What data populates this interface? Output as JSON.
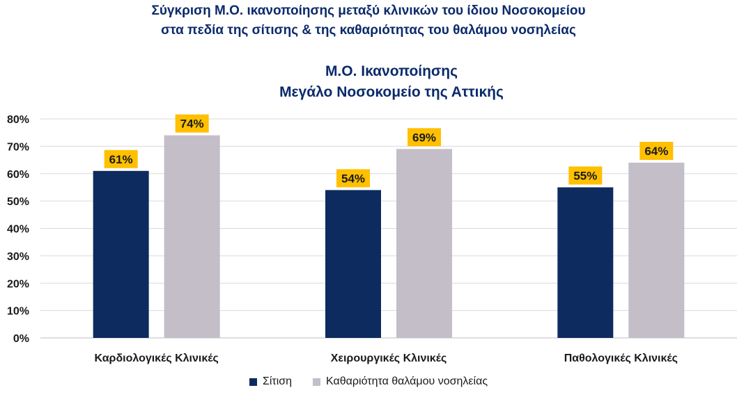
{
  "header": {
    "line1": "Σύγκριση Μ.Ο. ικανοποίησης μεταξύ κλινικών του ίδιου Νοσοκομείου",
    "line2": "στα πεδία της σίτισης & της καθαριότητας του θαλάμου νοσηλείας"
  },
  "chart_data": {
    "type": "bar",
    "title": "Μ.Ο. Ικανοποίησης",
    "subtitle": "Μεγάλο Νοσοκομείο της Αττικής",
    "categories": [
      "Καρδιολογικές Κλινικές",
      "Χειρουργικές Κλινικές",
      "Παθολογικές Κλινικές"
    ],
    "series": [
      {
        "name": "Σίτιση",
        "values": [
          61,
          54,
          55
        ],
        "color": "#0d2b5e"
      },
      {
        "name": "Καθαριότητα θαλάμου νοσηλείας",
        "values": [
          74,
          69,
          64
        ],
        "color": "#c4bec8"
      }
    ],
    "yticks": [
      "0%",
      "10%",
      "20%",
      "30%",
      "40%",
      "50%",
      "60%",
      "70%",
      "80%"
    ],
    "ylim": [
      0,
      80
    ],
    "data_labels": [
      [
        "61%",
        "54%",
        "55%"
      ],
      [
        "74%",
        "69%",
        "64%"
      ]
    ],
    "label_background": "#ffc000",
    "grid": true,
    "legend_position": "bottom"
  }
}
